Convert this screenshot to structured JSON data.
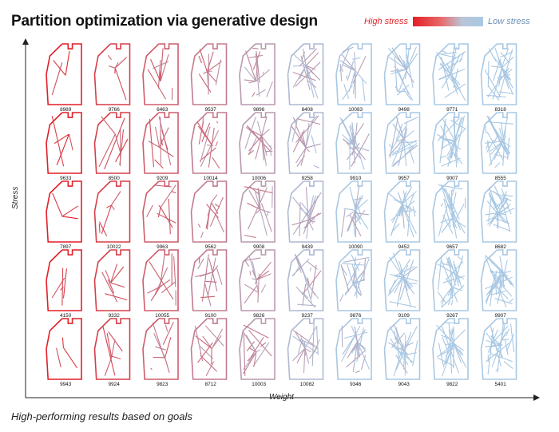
{
  "title": "Partition optimization via generative design",
  "legend": {
    "high_label": "High stress",
    "low_label": "Low stress",
    "high_color": "#e31e26",
    "low_color": "#a9c8e3"
  },
  "axes": {
    "y_label": "Stress",
    "x_label": "Weight"
  },
  "caption": "High-performing results based on goals",
  "grid": {
    "rows": [
      [
        "8989",
        "9766",
        "6463",
        "9537",
        "9896",
        "8408",
        "10083",
        "9498",
        "9771",
        "8318"
      ],
      [
        "9633",
        "8500",
        "9209",
        "10014",
        "10006",
        "9258",
        "9910",
        "9957",
        "9007",
        "8555"
      ],
      [
        "7897",
        "10022",
        "9963",
        "9562",
        "9908",
        "9439",
        "10090",
        "9452",
        "9657",
        "8682"
      ],
      [
        "4150",
        "9332",
        "10055",
        "9100",
        "9826",
        "9237",
        "9876",
        "9109",
        "9267",
        "9907"
      ],
      [
        "9943",
        "9924",
        "9823",
        "8712",
        "10003",
        "10082",
        "9346",
        "9043",
        "9822",
        "5401"
      ]
    ]
  }
}
